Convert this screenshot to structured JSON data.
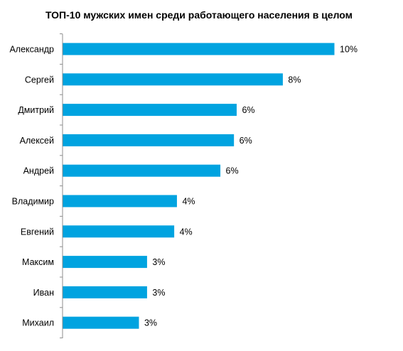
{
  "chart_data": {
    "type": "bar",
    "orientation": "horizontal",
    "title": "ТОП-10 мужских имен среди работающего населения в целом",
    "categories": [
      "Александр",
      "Сергей",
      "Дмитрий",
      "Алексей",
      "Андрей",
      "Владимир",
      "Евгений",
      "Максим",
      "Иван",
      "Михаил"
    ],
    "values": [
      10,
      8,
      6,
      6,
      6,
      4,
      4,
      3,
      3,
      3
    ],
    "value_labels": [
      "10%",
      "8%",
      "6%",
      "6%",
      "6%",
      "4%",
      "4%",
      "3%",
      "3%",
      "3%"
    ],
    "bar_lengths": [
      10.0,
      8.1,
      6.4,
      6.3,
      5.8,
      4.2,
      4.1,
      3.1,
      3.1,
      2.8
    ],
    "unit": "%",
    "xlim": [
      0,
      10.0
    ],
    "grid": false,
    "legend": "none",
    "bar_color": "#00a3e0"
  }
}
